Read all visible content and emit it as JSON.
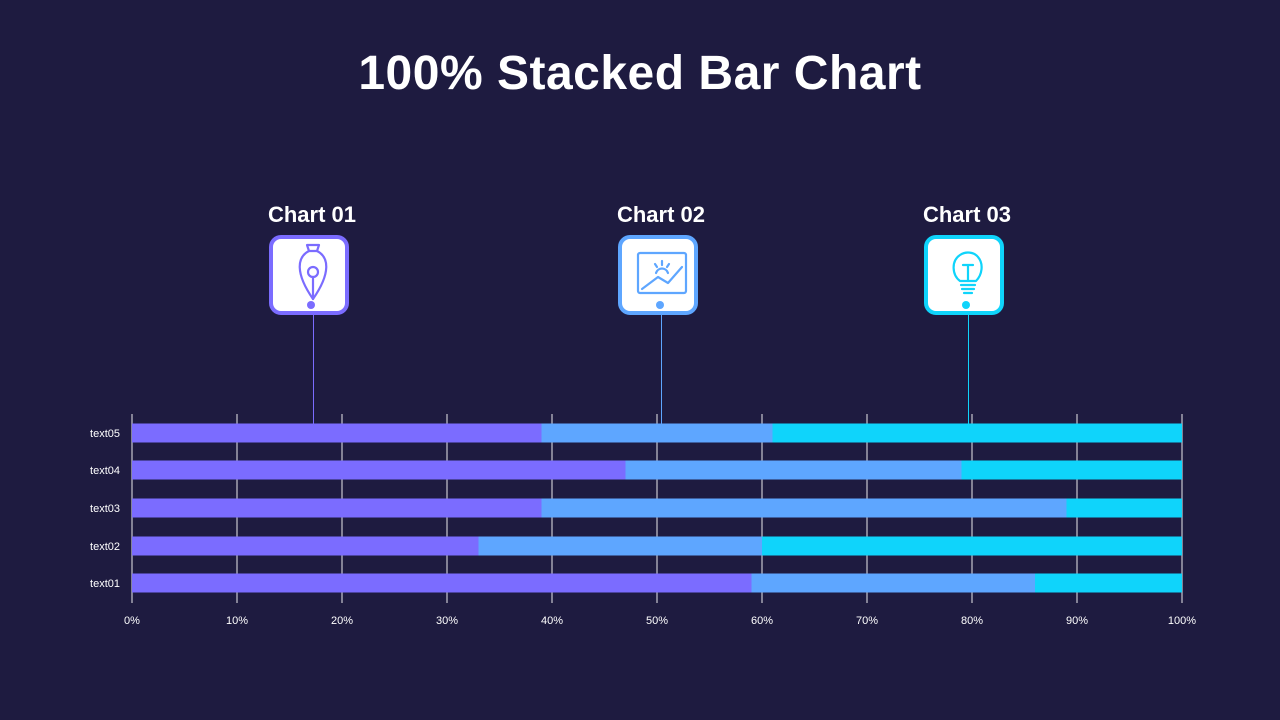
{
  "title": "100% Stacked Bar Chart",
  "colors": {
    "background": "#1e1b40",
    "series1": "#7b6cff",
    "series2": "#5ea6ff",
    "series3": "#0fd4fb",
    "grid": "#ffffff"
  },
  "callouts": [
    {
      "label": "Chart 01",
      "icon": "pen-nib-icon",
      "color": "#7b6cff"
    },
    {
      "label": "Chart 02",
      "icon": "picture-icon",
      "color": "#5ea6ff"
    },
    {
      "label": "Chart 03",
      "icon": "lightbulb-icon",
      "color": "#0fd4fb"
    }
  ],
  "chart_data": {
    "type": "bar",
    "orientation": "horizontal",
    "stacked": "percent",
    "title": "100% Stacked Bar Chart",
    "categories": [
      "text01",
      "text02",
      "text03",
      "text04",
      "text05"
    ],
    "series": [
      {
        "name": "Chart 01",
        "values": [
          59,
          33,
          39,
          47,
          39
        ]
      },
      {
        "name": "Chart 02",
        "values": [
          27,
          27,
          50,
          32,
          22
        ]
      },
      {
        "name": "Chart 03",
        "values": [
          14,
          40,
          11,
          21,
          39
        ]
      }
    ],
    "xlim": [
      0,
      100
    ],
    "x_ticks": [
      "0%",
      "10%",
      "20%",
      "30%",
      "40%",
      "50%",
      "60%",
      "70%",
      "80%",
      "90%",
      "100%"
    ],
    "grid": true,
    "legend": "callouts-above"
  }
}
